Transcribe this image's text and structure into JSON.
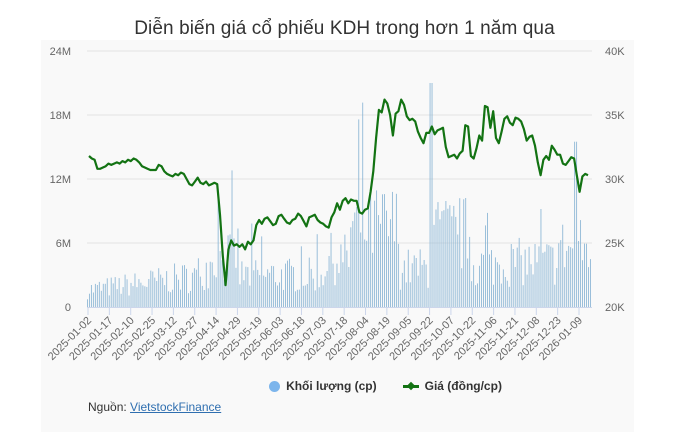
{
  "title": "Diễn biến giá cổ phiếu KDH trong hơn 1 năm qua",
  "legend": {
    "volume_label": "Khối lượng (cp)",
    "price_label": "Giá (đồng/cp)"
  },
  "source": {
    "prefix": "Nguồn: ",
    "link_text": "VietstockFinance"
  },
  "colors": {
    "volume": "#7cb5ec",
    "volume_bar": "#8fb8d6",
    "price": "#137313",
    "grid": "#e3e3e3",
    "panel_bg": "#f9f9f9"
  },
  "chart_data": {
    "type": "bar+line",
    "title": "Diễn biến giá cổ phiếu KDH trong hơn 1 năm qua",
    "xlabel": "",
    "ylabel_left": "Khối lượng (cp)",
    "ylabel_right": "Giá (đồng/cp)",
    "y_left_ticks": [
      "0",
      "6M",
      "12M",
      "18M",
      "24M"
    ],
    "y_left_range": [
      0,
      24000000
    ],
    "y_right_ticks": [
      "20K",
      "25K",
      "30K",
      "35K",
      "40K"
    ],
    "y_right_range": [
      20000,
      40000
    ],
    "x_tick_labels": [
      "2025-01-02",
      "2025-01-17",
      "2025-02-10",
      "2025-02-25",
      "2025-03-12",
      "2025-03-27",
      "2025-04-14",
      "2025-04-29",
      "2025-05-19",
      "2025-06-03",
      "2025-06-18",
      "2025-07-03",
      "2025-07-18",
      "2025-08-04",
      "2025-08-19",
      "2025-09-05",
      "2025-09-22",
      "2025-10-07",
      "2025-10-22",
      "2025-11-06",
      "2025-11-21",
      "2025-12-08",
      "2025-12-23",
      "2026-01-09"
    ],
    "grid": true,
    "legend_position": "bottom",
    "series": [
      {
        "name": "Giá (đồng/cp)",
        "type": "line",
        "axis": "right",
        "note": "approximate price per ~2 trading days, read from line",
        "values": [
          31800,
          31600,
          31500,
          30800,
          30800,
          30900,
          31000,
          31200,
          31100,
          31200,
          31300,
          31200,
          31400,
          31300,
          31500,
          31400,
          31600,
          31500,
          31300,
          31000,
          30900,
          30800,
          30700,
          30700,
          30700,
          31100,
          31000,
          30600,
          30400,
          30300,
          30200,
          30400,
          30300,
          30500,
          30400,
          30000,
          29600,
          29500,
          29800,
          30100,
          29700,
          29600,
          29800,
          29500,
          29600,
          29700,
          29600,
          27200,
          24000,
          21700,
          24500,
          25200,
          24800,
          24900,
          24700,
          24900,
          24500,
          25100,
          24900,
          25200,
          26400,
          26800,
          26500,
          26900,
          27000,
          26700,
          26400,
          26500,
          27100,
          27200,
          26900,
          26600,
          26500,
          26800,
          26900,
          27300,
          27100,
          26700,
          26300,
          27000,
          27100,
          27200,
          26800,
          26600,
          26500,
          26300,
          26200,
          27000,
          27400,
          28100,
          27600,
          28300,
          28500,
          28100,
          28400,
          28300,
          28300,
          27400,
          27300,
          27600,
          27700,
          29000,
          30600,
          33200,
          35400,
          35200,
          36200,
          35900,
          35000,
          33400,
          35100,
          35300,
          36200,
          35800,
          34900,
          34600,
          34700,
          34500,
          33700,
          33200,
          32800,
          33600,
          33600,
          34100,
          33500,
          33800,
          33900,
          34000,
          32500,
          31700,
          31800,
          31900,
          31600,
          32000,
          32200,
          34200,
          34100,
          31800,
          31600,
          32400,
          33400,
          33000,
          35700,
          35600,
          34000,
          35300,
          33200,
          32800,
          33700,
          34700,
          34900,
          34400,
          34200,
          34800,
          34700,
          34500,
          33900,
          33000,
          33300,
          33400,
          32600,
          31300,
          30300,
          31500,
          31800,
          31500,
          32600,
          32300,
          31900,
          31900,
          31200,
          31100,
          31400,
          31700,
          31600,
          30300,
          29000,
          30200,
          30400,
          30300
        ],
        "start_value": 31800,
        "end_value": 30300,
        "min_value": 21700,
        "min_date": "~2025-04-09",
        "max_value": 36200
      },
      {
        "name": "Khối lượng (cp)",
        "type": "bar",
        "axis": "left",
        "note": "daily volume; typical range 1M–10M, peak ~21M (~2025-10-16)",
        "typical_min": 1000000,
        "typical_max": 10000000,
        "peak_value": 21000000,
        "peak_date": "~2025-10-16"
      }
    ]
  }
}
